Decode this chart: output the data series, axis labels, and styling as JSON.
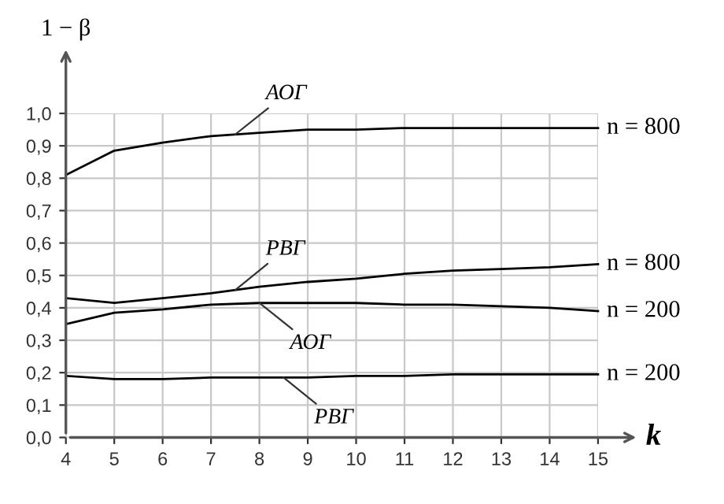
{
  "chart_data": {
    "type": "line",
    "xlabel": "k",
    "ylabel": "1 − β",
    "x": [
      4,
      5,
      6,
      7,
      8,
      9,
      10,
      11,
      12,
      13,
      14,
      15
    ],
    "series": [
      {
        "name": "n = 800",
        "color": "#000000",
        "values": [
          0.81,
          0.885,
          0.91,
          0.93,
          0.94,
          0.95,
          0.95,
          0.955,
          0.955,
          0.955,
          0.955,
          0.955
        ]
      },
      {
        "name": "n = 800",
        "color": "#000000",
        "values": [
          0.43,
          0.415,
          0.43,
          0.445,
          0.465,
          0.48,
          0.49,
          0.505,
          0.515,
          0.52,
          0.525,
          0.535
        ]
      },
      {
        "name": "n = 200",
        "color": "#000000",
        "values": [
          0.35,
          0.385,
          0.395,
          0.41,
          0.415,
          0.415,
          0.415,
          0.41,
          0.41,
          0.405,
          0.4,
          0.39
        ]
      },
      {
        "name": "n = 200",
        "color": "#000000",
        "values": [
          0.19,
          0.18,
          0.18,
          0.185,
          0.185,
          0.185,
          0.19,
          0.19,
          0.195,
          0.195,
          0.195,
          0.195
        ]
      }
    ],
    "annotations": [
      {
        "text": "АОГ",
        "x": 7.5,
        "y": 0.935
      },
      {
        "text": "РВГ",
        "x": 7.5,
        "y": 0.455
      },
      {
        "text": "АОГ",
        "x": 8,
        "y": 0.415
      },
      {
        "text": "РВГ",
        "x": 8.5,
        "y": 0.185
      }
    ],
    "xlim": [
      4,
      15
    ],
    "ylim": [
      0,
      1.0
    ],
    "xticks": [
      4,
      5,
      6,
      7,
      8,
      9,
      10,
      11,
      12,
      13,
      14,
      15
    ],
    "yticks": [
      {
        "value": 0,
        "label": "0,0"
      },
      {
        "value": 0.1,
        "label": "0,1"
      },
      {
        "value": 0.2,
        "label": "0,2"
      },
      {
        "value": 0.3,
        "label": "0,3"
      },
      {
        "value": 0.4,
        "label": "0,4"
      },
      {
        "value": 0.5,
        "label": "0,5"
      },
      {
        "value": 0.6,
        "label": "0,6"
      },
      {
        "value": 0.7,
        "label": "0,7"
      },
      {
        "value": 0.8,
        "label": "0,8"
      },
      {
        "value": 0.9,
        "label": "0,9"
      },
      {
        "value": 1.0,
        "label": "1,0"
      }
    ],
    "grid": true,
    "marker": "none",
    "line_style": "solid"
  }
}
